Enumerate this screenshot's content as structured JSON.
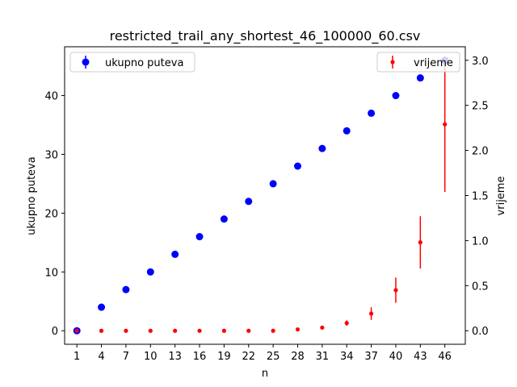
{
  "chart_data": {
    "type": "scatter",
    "title": "restricted_trail_any_shortest_46_100000_60.csv",
    "xlabel": "n",
    "ylabel_left": "ukupno puteva",
    "ylabel_right": "vrijeme",
    "x_ticks": [
      "1",
      "4",
      "7",
      "10",
      "13",
      "16",
      "19",
      "22",
      "25",
      "28",
      "31",
      "34",
      "37",
      "40",
      "43",
      "46"
    ],
    "xlim": [
      -0.5,
      48.5
    ],
    "ylim_left": [
      -2.3,
      48.3
    ],
    "ylim_right": [
      -0.15,
      3.15
    ],
    "y_ticks_left": [
      "0",
      "10",
      "20",
      "30",
      "40"
    ],
    "y_ticks_right": [
      "0.0",
      "0.5",
      "1.0",
      "1.5",
      "2.0",
      "2.5",
      "3.0"
    ],
    "legend_placement_left": "upper-left",
    "legend_placement_right": "upper-right",
    "series": [
      {
        "name": "ukupno puteva",
        "axis": "left",
        "color": "#0000ff",
        "marker": "circle",
        "x": [
          1,
          4,
          7,
          10,
          13,
          16,
          19,
          22,
          25,
          28,
          31,
          34,
          37,
          40,
          43,
          46
        ],
        "y": [
          0,
          4,
          7,
          10,
          13,
          16,
          19,
          22,
          25,
          28,
          31,
          34,
          37,
          40,
          43,
          46
        ],
        "yerr": [
          0,
          0,
          0,
          0,
          0,
          0,
          0,
          0,
          0,
          0,
          0,
          0,
          0,
          0,
          0,
          0
        ]
      },
      {
        "name": "vrijeme",
        "axis": "right",
        "color": "#ff0000",
        "marker": "small-circle",
        "x": [
          1,
          4,
          7,
          10,
          13,
          16,
          19,
          22,
          25,
          28,
          31,
          34,
          37,
          40,
          43,
          46
        ],
        "y": [
          0.0,
          0.0,
          0.0,
          0.0,
          0.0,
          0.0,
          0.0,
          0.0,
          0.0,
          0.015,
          0.035,
          0.085,
          0.19,
          0.45,
          0.98,
          2.29
        ],
        "yerr": [
          0.005,
          0.003,
          0.003,
          0.003,
          0.003,
          0.003,
          0.003,
          0.003,
          0.003,
          0.01,
          0.01,
          0.03,
          0.07,
          0.14,
          0.29,
          0.75
        ]
      }
    ]
  }
}
